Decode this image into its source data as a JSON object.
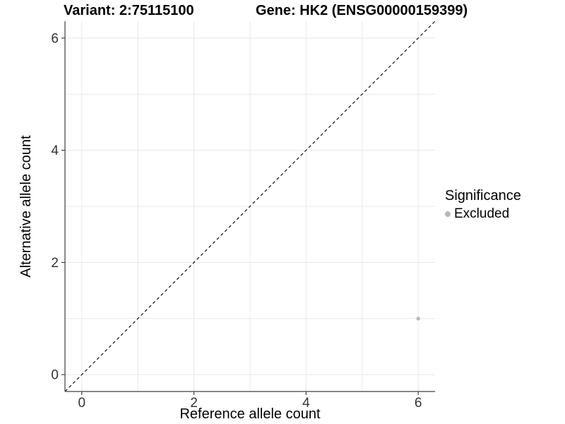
{
  "titles": {
    "variant": "Variant: 2:75115100",
    "gene": "Gene: HK2 (ENSG00000159399)"
  },
  "chart_data": {
    "type": "scatter",
    "title": "Variant: 2:75115100   Gene: HK2 (ENSG00000159399)",
    "xlabel": "Reference allele count",
    "ylabel": "Alternative allele count",
    "xlim": [
      -0.3,
      6.3
    ],
    "ylim": [
      -0.3,
      6.3
    ],
    "xticks": [
      0,
      2,
      4,
      6
    ],
    "yticks": [
      0,
      2,
      4,
      6
    ],
    "grid": true,
    "grid_positions": [
      0,
      1,
      2,
      3,
      4,
      5,
      6
    ],
    "grid_color": "#e8e8e8",
    "axis_color": "#404040",
    "tick_label_color": "#333333",
    "identity_line": {
      "style": "dashed",
      "slope": 1,
      "intercept": 0,
      "color": "#000000"
    },
    "series": [
      {
        "name": "Excluded",
        "color": "#b8b8b8",
        "points": [
          {
            "x": 6,
            "y": 1
          }
        ]
      }
    ],
    "legend": {
      "title": "Significance",
      "position": "right",
      "items": [
        {
          "label": "Excluded",
          "color": "#b8b8b8"
        }
      ]
    }
  }
}
